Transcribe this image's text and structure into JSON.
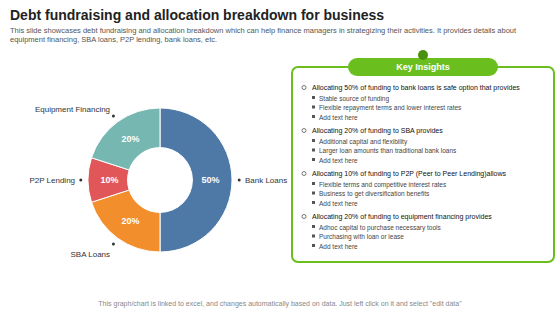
{
  "chart_data": {
    "type": "pie",
    "title": "Debt fundraising and allocation breakdown for business",
    "subtitle": "This slide showcases debt fundraising and allocation breakdown which can help finance managers in strategizing their activities. It provides details about equipment financing, SBA loans, P2P lending, bank loans, etc.",
    "footer": "This graph/chart is linked to excel, and changes automatically based on data. Just left click on it and select \"edit data\"",
    "categories": [
      "Bank Loans",
      "SBA Loans",
      "P2P Lending",
      "Equipment Financing"
    ],
    "values": [
      50,
      20,
      10,
      20
    ],
    "value_labels": [
      "50%",
      "20%",
      "10%",
      "20%"
    ],
    "data_labels": true,
    "annotations": {
      "title": "Key Insights",
      "items": [
        {
          "header": "Allocating 50% of funding to bank loans is safe option that provides",
          "bullets": [
            "Stable source of funding",
            "Flexible repayment terms and lower interest rates",
            "Add text here"
          ]
        },
        {
          "header": "Allocating 20% of funding to SBA provides",
          "bullets": [
            "Additional capital and flexibility",
            "Larger loan amounts than traditional bank loans",
            "Add text here"
          ]
        },
        {
          "header": "Allocating 10% of funding to P2P (Peer to Peer Lending)allows",
          "bullets": [
            "Flexible terms and competitive interest rates",
            "Business to get diversification benefits",
            "Add text here"
          ]
        },
        {
          "header": "Allocating 20% of funding to equipment financing provides",
          "bullets": [
            "Adhoc capital to purchase necessary tools",
            "Purchasing with loan or lease",
            "Add text here"
          ]
        }
      ]
    }
  }
}
